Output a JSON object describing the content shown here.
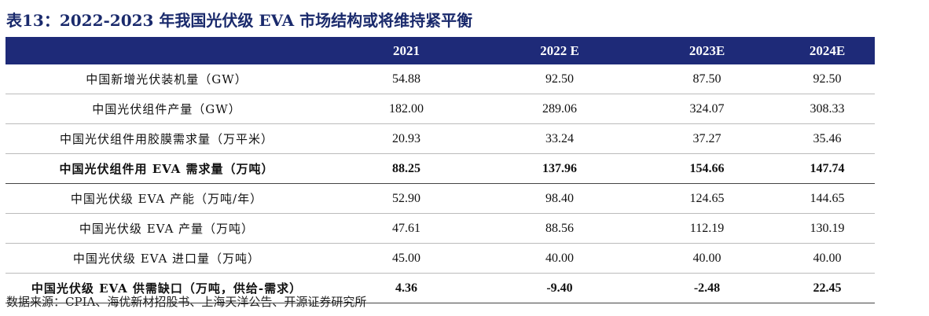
{
  "title": "表13：2022-2023 年我国光伏级 EVA 市场结构或将维持紧平衡",
  "table": {
    "header": [
      "",
      "2021",
      "2022 E",
      "2023E",
      "2024E"
    ],
    "rows": [
      [
        "中国新增光伏装机量（GW）",
        "54.88",
        "92.50",
        "87.50",
        "92.50"
      ],
      [
        "中国光伏组件产量（GW）",
        "182.00",
        "289.06",
        "324.07",
        "308.33"
      ],
      [
        "中国光伏组件用胶膜需求量（万平米）",
        "20.93",
        "33.24",
        "37.27",
        "35.46"
      ],
      [
        "中国光伏组件用 EVA 需求量（万吨）",
        "88.25",
        "137.96",
        "154.66",
        "147.74"
      ],
      [
        "中国光伏级 EVA 产能（万吨/年）",
        "52.90",
        "98.40",
        "124.65",
        "144.65"
      ],
      [
        "中国光伏级 EVA 产量（万吨）",
        "47.61",
        "88.56",
        "112.19",
        "130.19"
      ],
      [
        "中国光伏级 EVA 进口量（万吨）",
        "45.00",
        "40.00",
        "40.00",
        "40.00"
      ],
      [
        "中国光伏级 EVA 供需缺口（万吨，供给-需求）",
        "4.36",
        "-9.40",
        "-2.48",
        "22.45"
      ]
    ]
  },
  "source": "数据来源：CPIA、海优新材招股书、上海天洋公告、开源证券研究所"
}
